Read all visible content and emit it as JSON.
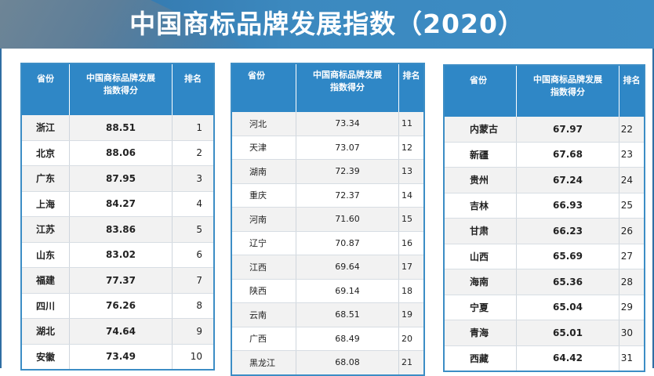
{
  "title": "中国商标品牌发展指数（2020）",
  "headers": {
    "province": "省份",
    "score_line1": "中国商标品牌发展",
    "score_line2": "指数得分",
    "rank": "排名"
  },
  "colors": {
    "banner": "#3c8dc5",
    "header": "#2f87c6",
    "row_alt": "#f2f2f2"
  },
  "chart_data": {
    "type": "table",
    "title": "中国商标品牌发展指数（2020）",
    "columns": [
      "省份",
      "中国商标品牌发展指数得分",
      "排名"
    ],
    "tables": [
      {
        "rows": [
          [
            "浙江",
            "88.51",
            "1"
          ],
          [
            "北京",
            "88.06",
            "2"
          ],
          [
            "广东",
            "87.95",
            "3"
          ],
          [
            "上海",
            "84.27",
            "4"
          ],
          [
            "江苏",
            "83.86",
            "5"
          ],
          [
            "山东",
            "83.02",
            "6"
          ],
          [
            "福建",
            "77.37",
            "7"
          ],
          [
            "四川",
            "76.26",
            "8"
          ],
          [
            "湖北",
            "74.64",
            "9"
          ],
          [
            "安徽",
            "73.49",
            "10"
          ]
        ]
      },
      {
        "rows": [
          [
            "河北",
            "73.34",
            "11"
          ],
          [
            "天津",
            "73.07",
            "12"
          ],
          [
            "湖南",
            "72.39",
            "13"
          ],
          [
            "重庆",
            "72.37",
            "14"
          ],
          [
            "河南",
            "71.60",
            "15"
          ],
          [
            "辽宁",
            "70.87",
            "16"
          ],
          [
            "江西",
            "69.64",
            "17"
          ],
          [
            "陕西",
            "69.14",
            "18"
          ],
          [
            "云南",
            "68.51",
            "19"
          ],
          [
            "广西",
            "68.49",
            "20"
          ],
          [
            "黑龙江",
            "68.08",
            "21"
          ]
        ]
      },
      {
        "rows": [
          [
            "内蒙古",
            "67.97",
            "22"
          ],
          [
            "新疆",
            "67.68",
            "23"
          ],
          [
            "贵州",
            "67.24",
            "24"
          ],
          [
            "吉林",
            "66.93",
            "25"
          ],
          [
            "甘肃",
            "66.23",
            "26"
          ],
          [
            "山西",
            "65.69",
            "27"
          ],
          [
            "海南",
            "65.36",
            "28"
          ],
          [
            "宁夏",
            "65.04",
            "29"
          ],
          [
            "青海",
            "65.01",
            "30"
          ],
          [
            "西藏",
            "64.42",
            "31"
          ]
        ]
      }
    ]
  }
}
